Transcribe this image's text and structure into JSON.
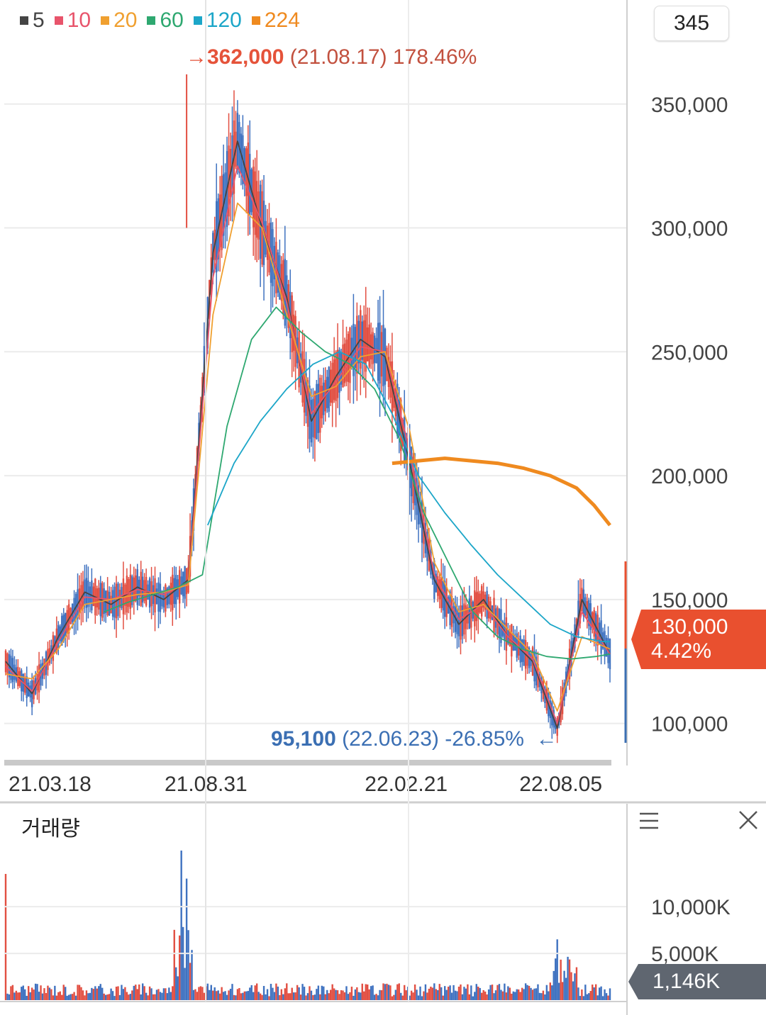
{
  "legend": [
    {
      "label": "5",
      "color": "#444444"
    },
    {
      "label": "10",
      "color": "#e8546b"
    },
    {
      "label": "20",
      "color": "#f0a030"
    },
    {
      "label": "60",
      "color": "#2ea870"
    },
    {
      "label": "120",
      "color": "#1ca6c8"
    },
    {
      "label": "224",
      "color": "#ef8a1f"
    }
  ],
  "period_value": "345",
  "high_marker": {
    "arrow": "→",
    "price": "362,000",
    "date": "(21.08.17)",
    "pct": "178.46%"
  },
  "low_marker": {
    "price": "95,100",
    "date": "(22.06.23)",
    "pct": "-26.85%",
    "arrow": "←"
  },
  "price_axis": {
    "ticks": [
      "350,000",
      "300,000",
      "250,000",
      "200,000",
      "150,000",
      "100,000"
    ]
  },
  "date_axis": {
    "ticks": [
      "21.03.18",
      "21.08.31",
      "22.02.21",
      "22.08.05"
    ]
  },
  "current": {
    "price": "130,000",
    "change": "4.42%",
    "color": "#e9502f"
  },
  "volume_panel": {
    "title": "거래량",
    "ticks": [
      "10,000K",
      "5,000K"
    ],
    "current": "1,146K",
    "current_color": "#5f6670"
  },
  "chart_data": {
    "type": "line",
    "series": [
      {
        "name": "5",
        "x": [
          0,
          15,
          30,
          45,
          60,
          75,
          90,
          104,
          118,
          132,
          146,
          160,
          174,
          188,
          202,
          216,
          230,
          244,
          258,
          272,
          286,
          300,
          314,
          328,
          344
        ],
        "values": [
          125000,
          112000,
          135000,
          153000,
          148000,
          155000,
          150000,
          158000,
          290000,
          335000,
          300000,
          272000,
          222000,
          240000,
          255000,
          248000,
          205000,
          158000,
          140000,
          150000,
          135000,
          125000,
          98000,
          150000,
          128000
        ]
      },
      {
        "name": "10",
        "x": [
          0,
          15,
          30,
          45,
          60,
          75,
          90,
          104,
          118,
          132,
          146,
          160,
          174,
          188,
          202,
          216,
          230,
          244,
          258,
          272,
          286,
          300,
          314,
          328,
          344
        ],
        "values": [
          123000,
          113000,
          133000,
          151000,
          150000,
          154000,
          152000,
          157000,
          280000,
          325000,
          302000,
          270000,
          225000,
          238000,
          252000,
          250000,
          210000,
          160000,
          142000,
          148000,
          135000,
          126000,
          100000,
          145000,
          128000
        ]
      },
      {
        "name": "20",
        "x": [
          0,
          15,
          30,
          45,
          60,
          75,
          90,
          104,
          118,
          132,
          146,
          160,
          174,
          188,
          202,
          216,
          230,
          244,
          258,
          272,
          286,
          300,
          314,
          328,
          344
        ],
        "values": [
          120000,
          118000,
          130000,
          148000,
          150000,
          152000,
          153000,
          156000,
          265000,
          310000,
          300000,
          265000,
          232000,
          236000,
          248000,
          250000,
          218000,
          165000,
          145000,
          148000,
          138000,
          128000,
          105000,
          135000,
          130000
        ]
      },
      {
        "name": "60",
        "x": [
          56,
          70,
          84,
          98,
          112,
          126,
          140,
          154,
          168,
          182,
          196,
          210,
          224,
          238,
          252,
          266,
          280,
          294,
          308,
          322,
          336,
          344
        ],
        "values": [
          145000,
          149000,
          152000,
          155000,
          160000,
          220000,
          255000,
          268000,
          258000,
          250000,
          245000,
          235000,
          215000,
          185000,
          165000,
          145000,
          135000,
          130000,
          127000,
          126000,
          127000,
          128000
        ]
      },
      {
        "name": "120",
        "x": [
          115,
          130,
          145,
          160,
          175,
          190,
          205,
          220,
          235,
          250,
          265,
          280,
          295,
          310,
          325,
          340,
          344
        ],
        "values": [
          180000,
          205000,
          222000,
          235000,
          245000,
          250000,
          245000,
          225000,
          200000,
          185000,
          172000,
          160000,
          150000,
          140000,
          135000,
          133000,
          133000
        ]
      },
      {
        "name": "224",
        "x": [
          220,
          235,
          250,
          265,
          280,
          295,
          310,
          325,
          335,
          344
        ],
        "values": [
          205000,
          206000,
          207000,
          206000,
          205000,
          203000,
          200000,
          195000,
          188000,
          180000
        ]
      }
    ],
    "y_range": [
      83000,
      392000
    ],
    "y_ticks": [
      350000,
      300000,
      250000,
      200000,
      150000,
      100000
    ],
    "x_ticks": [
      {
        "x": 0,
        "label": "21.03.18"
      },
      {
        "x": 114,
        "label": "21.08.31"
      },
      {
        "x": 228,
        "label": "22.02.21"
      },
      {
        "x": 316,
        "label": "22.08.05"
      }
    ],
    "high": {
      "value": 362000,
      "date": "21.08.17",
      "pct": "178.46%"
    },
    "low": {
      "value": 95100,
      "date": "22.06.23",
      "pct": "-26.85%"
    },
    "current_price": 130000,
    "volume_ticks": [
      10000,
      5000
    ],
    "volume_current_k": 1146
  }
}
